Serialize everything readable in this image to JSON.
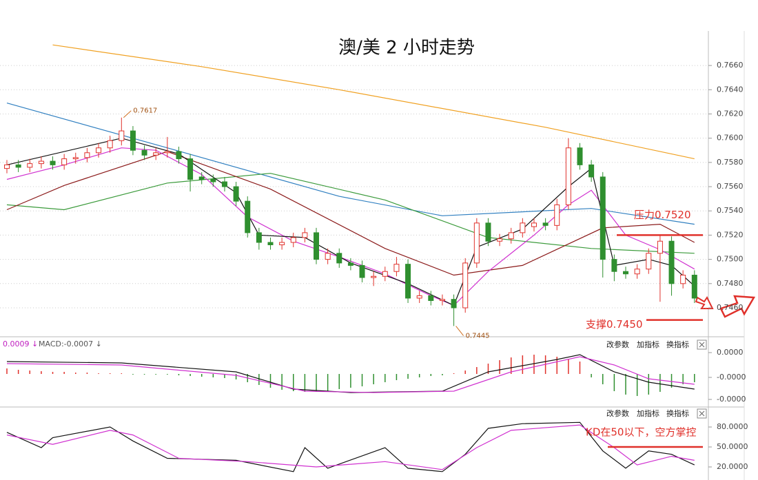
{
  "chart_data": [
    {
      "type": "candlestick",
      "title": "澳/美 2 小时走势",
      "up_color": "#e0302a",
      "down_color": "#2f8f2f",
      "open": [
        0.7575,
        0.7578,
        0.7576,
        0.7579,
        0.7581,
        0.7578,
        0.7583,
        0.7584,
        0.7588,
        0.7592,
        0.7598,
        0.7606,
        0.759,
        0.7586,
        0.7588,
        0.7589,
        0.7583,
        0.7568,
        0.7566,
        0.7564,
        0.756,
        0.7548,
        0.7522,
        0.7514,
        0.7512,
        0.7514,
        0.7518,
        0.7522,
        0.75,
        0.7505,
        0.7497,
        0.7495,
        0.7485,
        0.7486,
        0.749,
        0.7496,
        0.7468,
        0.747,
        0.7466,
        0.7467,
        0.746,
        0.7497,
        0.753,
        0.7515,
        0.7517,
        0.7522,
        0.7527,
        0.753,
        0.7528,
        0.7545,
        0.7592,
        0.7578,
        0.7568,
        0.75,
        0.749,
        0.7488,
        0.7492,
        0.7505,
        0.7515,
        0.748,
        0.7487
      ],
      "high": [
        0.7582,
        0.7582,
        0.7583,
        0.7585,
        0.7585,
        0.7587,
        0.7588,
        0.7592,
        0.7596,
        0.7602,
        0.7617,
        0.761,
        0.7594,
        0.7592,
        0.7601,
        0.7593,
        0.7587,
        0.7572,
        0.757,
        0.7568,
        0.7564,
        0.7552,
        0.7526,
        0.7518,
        0.7518,
        0.7522,
        0.7526,
        0.7526,
        0.7509,
        0.7509,
        0.7501,
        0.7499,
        0.749,
        0.7494,
        0.7502,
        0.75,
        0.7474,
        0.7474,
        0.7471,
        0.7471,
        0.7501,
        0.7534,
        0.7534,
        0.7521,
        0.7526,
        0.7534,
        0.7534,
        0.7534,
        0.755,
        0.76,
        0.7596,
        0.7582,
        0.7572,
        0.7504,
        0.7494,
        0.7496,
        0.7509,
        0.752,
        0.7519,
        0.7491,
        0.7491
      ],
      "low": [
        0.7571,
        0.7572,
        0.7572,
        0.7575,
        0.7574,
        0.7574,
        0.7579,
        0.758,
        0.7584,
        0.7588,
        0.7594,
        0.7586,
        0.7582,
        0.7582,
        0.7584,
        0.7579,
        0.7556,
        0.7562,
        0.756,
        0.7556,
        0.7544,
        0.7518,
        0.7508,
        0.7508,
        0.7508,
        0.751,
        0.7514,
        0.7496,
        0.7496,
        0.7493,
        0.7491,
        0.7481,
        0.7478,
        0.7482,
        0.7486,
        0.7464,
        0.7464,
        0.7462,
        0.7462,
        0.7445,
        0.7456,
        0.7493,
        0.7511,
        0.7511,
        0.7513,
        0.7518,
        0.7523,
        0.7524,
        0.7524,
        0.7541,
        0.7574,
        0.7564,
        0.7485,
        0.7482,
        0.7484,
        0.7484,
        0.7488,
        0.7465,
        0.747,
        0.7476,
        0.7464
      ],
      "close": [
        0.7578,
        0.7576,
        0.7579,
        0.7581,
        0.7578,
        0.7583,
        0.7584,
        0.7588,
        0.7592,
        0.7598,
        0.7606,
        0.759,
        0.7586,
        0.7588,
        0.7589,
        0.7583,
        0.7566,
        0.7566,
        0.7564,
        0.756,
        0.7548,
        0.7522,
        0.7514,
        0.7512,
        0.7514,
        0.7518,
        0.7522,
        0.75,
        0.7505,
        0.7497,
        0.7495,
        0.7485,
        0.7486,
        0.749,
        0.7496,
        0.7468,
        0.747,
        0.7466,
        0.7467,
        0.746,
        0.7497,
        0.753,
        0.7515,
        0.7517,
        0.7522,
        0.753,
        0.753,
        0.7528,
        0.7545,
        0.7592,
        0.7578,
        0.7568,
        0.75,
        0.749,
        0.7488,
        0.7492,
        0.7505,
        0.7515,
        0.748,
        0.7487,
        0.7468
      ],
      "series": [
        {
          "color": "#f0a020",
          "x": [
            4,
            17,
            29,
            47,
            60
          ],
          "values": [
            0.7677,
            0.7659,
            0.764,
            0.7609,
            0.7583
          ]
        },
        {
          "color": "#2f7fc0",
          "x": [
            0,
            14,
            29,
            38,
            51,
            60
          ],
          "values": [
            0.7629,
            0.7592,
            0.7552,
            0.7536,
            0.7542,
            0.7529
          ]
        },
        {
          "color": "#3a9a3a",
          "x": [
            0,
            5,
            14,
            23,
            33,
            42,
            51,
            60
          ],
          "values": [
            0.7545,
            0.7541,
            0.7563,
            0.7571,
            0.7549,
            0.7518,
            0.7509,
            0.7505
          ]
        },
        {
          "color": "#8b1a1a",
          "x": [
            0,
            5,
            14,
            23,
            33,
            39,
            45,
            52,
            57,
            60
          ],
          "values": [
            0.7541,
            0.7561,
            0.7589,
            0.7558,
            0.7509,
            0.7487,
            0.7495,
            0.7526,
            0.7529,
            0.7514
          ]
        },
        {
          "color": "#d030d0",
          "x": [
            0,
            5,
            10,
            13,
            17,
            21,
            25,
            29,
            33,
            37,
            39,
            42,
            46,
            49,
            51,
            54,
            57,
            60
          ],
          "values": [
            0.7566,
            0.7578,
            0.7592,
            0.759,
            0.757,
            0.7535,
            0.7515,
            0.7502,
            0.7488,
            0.747,
            0.7462,
            0.749,
            0.752,
            0.7545,
            0.7557,
            0.752,
            0.7508,
            0.7492
          ]
        },
        {
          "color": "#111111",
          "x": [
            0,
            10,
            15,
            20,
            22,
            26,
            30,
            35,
            39,
            41,
            45,
            49,
            51,
            53,
            56,
            58,
            60
          ],
          "values": [
            0.7578,
            0.76,
            0.7587,
            0.7555,
            0.752,
            0.7518,
            0.7497,
            0.748,
            0.7462,
            0.751,
            0.7525,
            0.756,
            0.7575,
            0.7495,
            0.75,
            0.7495,
            0.7478
          ]
        }
      ],
      "ylim": [
        0.74367,
        0.76913
      ],
      "yticks": [
        {
          "value": 0.746,
          "label": "0.7460"
        },
        {
          "value": 0.748,
          "label": "0.7480"
        },
        {
          "value": 0.75,
          "label": "0.7500"
        },
        {
          "value": 0.752,
          "label": "0.7520"
        },
        {
          "value": 0.754,
          "label": "0.7540"
        },
        {
          "value": 0.756,
          "label": "0.7560"
        },
        {
          "value": 0.758,
          "label": "0.7580"
        },
        {
          "value": 0.76,
          "label": "0.7600"
        },
        {
          "value": 0.762,
          "label": "0.7620"
        },
        {
          "value": 0.764,
          "label": "0.7640"
        },
        {
          "value": 0.766,
          "label": "0.7660"
        }
      ],
      "grid": true,
      "peak_labels": [
        0.7617,
        0.7445
      ],
      "levels": [
        {
          "label": "压力0.7520",
          "value": 0.752,
          "color": "#e0302a"
        },
        {
          "label": "支撑0.7450",
          "value": 0.745,
          "color": "#e0302a"
        }
      ]
    },
    {
      "type": "macd",
      "header": [
        "0.0009 ↓",
        "MACD:-0.0007 ↓"
      ],
      "hist": [
        8e-06,
        6e-06,
        5e-06,
        4e-06,
        3e-06,
        3e-06,
        2e-06,
        2e-06,
        1e-06,
        1e-06,
        1e-06,
        -1e-06,
        -1e-06,
        -1e-06,
        -1e-06,
        -2e-06,
        -3e-06,
        -4e-06,
        -5e-06,
        -6e-06,
        -8e-06,
        -1.2e-05,
        -1.6e-05,
        -2e-05,
        -2.3e-05,
        -2.5e-05,
        -2.6e-05,
        -2.6e-05,
        -2.5e-05,
        -2.2e-05,
        -2e-05,
        -1.8e-05,
        -1.5e-05,
        -1.2e-05,
        -9e-06,
        -7e-06,
        -5e-06,
        -3e-06,
        -2e-06,
        1e-06,
        5e-06,
        1e-05,
        1.5e-05,
        2e-05,
        2.4e-05,
        2.7e-05,
        2.8e-05,
        2.7e-05,
        2.5e-05,
        2.2e-05,
        1.8e-05,
        -5e-06,
        -1.5e-05,
        -2.5e-05,
        -3e-05,
        -3.2e-05,
        -3e-05,
        -2.6e-05,
        -2e-05,
        -1.5e-05,
        -1.2e-05
      ],
      "up_color": "#e0302a",
      "down_color": "#2f8f2f",
      "series": [
        {
          "color": "#111111",
          "x": [
            0,
            10,
            20,
            25,
            30,
            38,
            42,
            48,
            50,
            53,
            56,
            60
          ],
          "values": [
            1.8e-05,
            1.6e-05,
            3e-06,
            -2.2e-05,
            -2.7e-05,
            -2.5e-05,
            3e-06,
            2.1e-05,
            2.8e-05,
            3e-06,
            -1.2e-05,
            -2.2e-05
          ]
        },
        {
          "color": "#d030d0",
          "x": [
            0,
            10,
            20,
            26,
            32,
            39,
            44,
            50,
            53,
            56,
            60
          ],
          "values": [
            1.5e-05,
            1.3e-05,
            -2e-06,
            -2.5e-05,
            -2.7e-05,
            -2.5e-05,
            3e-06,
            2.5e-05,
            1.3e-05,
            -7e-06,
            -1.5e-05
          ]
        }
      ],
      "ylim": [
        -4.7e-05,
        5.3e-05
      ],
      "yticks": [
        {
          "value": 3.1e-05,
          "label": "0.0000"
        },
        {
          "value": -5e-06,
          "label": "-0.0000"
        },
        {
          "value": -3.7e-05,
          "label": "-0.0000"
        }
      ]
    },
    {
      "type": "kd",
      "series": [
        {
          "color": "#111111",
          "x": [
            0,
            3,
            4,
            9,
            11,
            14,
            20,
            25,
            26,
            28,
            33,
            35,
            38,
            40,
            42,
            45,
            50,
            52,
            54,
            56,
            58,
            60
          ],
          "values": [
            72,
            49,
            64,
            80,
            59,
            33,
            30,
            13,
            49,
            18,
            49,
            18,
            13,
            39,
            78,
            85,
            87,
            44,
            18,
            44,
            39,
            23
          ]
        },
        {
          "color": "#d030d0",
          "x": [
            0,
            4,
            9,
            11,
            15,
            21,
            27,
            33,
            38,
            41,
            44,
            50,
            53,
            55,
            58,
            60
          ],
          "values": [
            68,
            54,
            75,
            68,
            33,
            28,
            20,
            28,
            16,
            49,
            75,
            83,
            49,
            23,
            36,
            30
          ]
        }
      ],
      "ylim": [
        7.6,
        109
      ],
      "yticks": [
        {
          "value": 80,
          "label": "80.0000"
        },
        {
          "value": 50,
          "label": "50.0000"
        },
        {
          "value": 20,
          "label": "20.0000"
        }
      ],
      "levels": [
        {
          "label": "KD在50以下，空方掌控",
          "value": 50,
          "color": "#e0302a"
        }
      ]
    }
  ],
  "toolbar": [
    "改参数",
    "加指标",
    "换指标"
  ]
}
